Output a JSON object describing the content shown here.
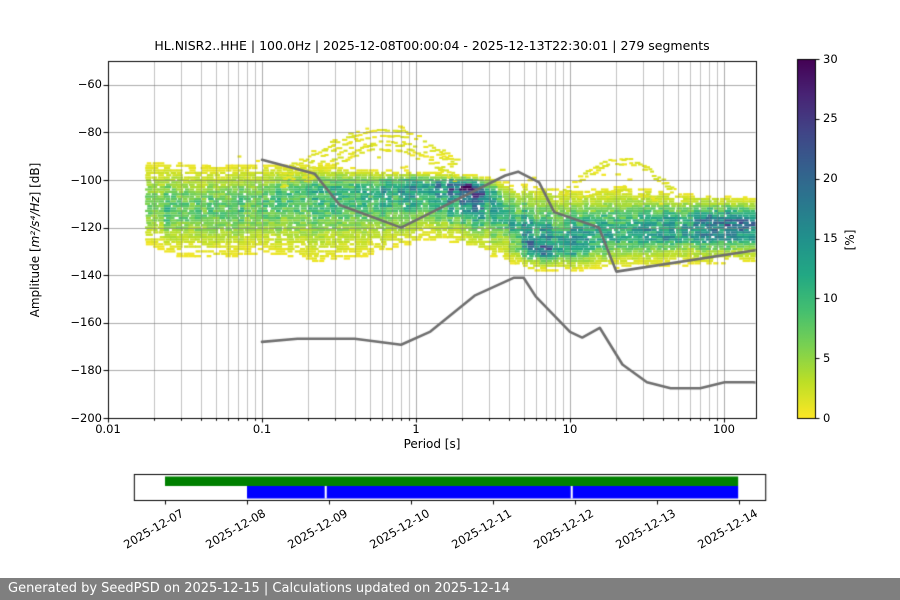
{
  "page": {
    "title": "HL.NISR2..HHE | 100.0Hz | 2025-12-08T00:00:04 - 2025-12-13T22:30:01 | 279 segments",
    "footer": "Generated by SeedPSD on 2025-12-15 | Calculations updated on 2025-12-14"
  },
  "chart_data": {
    "type": "heatmap",
    "title": "HL.NISR2..HHE | 100.0Hz | 2025-12-08T00:00:04 - 2025-12-13T22:30:01 | 279 segments",
    "xlabel": "Period [s]",
    "ylabel": {
      "prefix": "Amplitude [",
      "math": "m²/s⁴/Hz",
      "suffix": "] [dB]"
    },
    "xscale": "log",
    "xlim": [
      0.01,
      160
    ],
    "ylim": [
      -200,
      -50
    ],
    "grid": true,
    "x_major_ticks": [
      0.01,
      0.1,
      1,
      10,
      100
    ],
    "x_tick_labels": [
      "0.01",
      "0.1",
      "1",
      "10",
      "100"
    ],
    "y_major_ticks": [
      -60,
      -80,
      -100,
      -120,
      -140,
      -160,
      -180,
      -200
    ],
    "y_tick_labels": [
      "−60",
      "−80",
      "−100",
      "−120",
      "−140",
      "−160",
      "−180",
      "−200"
    ],
    "colorbar": {
      "label": "[%]",
      "min": 0,
      "max": 30,
      "ticks": [
        0,
        5,
        10,
        15,
        20,
        25,
        30
      ],
      "tick_labels": [
        "0",
        "5",
        "10",
        "15",
        "20",
        "25",
        "30"
      ],
      "colormap": "viridis_r",
      "viridis_stops": [
        [
          0.0,
          "#440154"
        ],
        [
          0.1,
          "#482475"
        ],
        [
          0.2,
          "#414487"
        ],
        [
          0.3,
          "#355f8d"
        ],
        [
          0.4,
          "#2a788e"
        ],
        [
          0.5,
          "#21918c"
        ],
        [
          0.6,
          "#22a884"
        ],
        [
          0.7,
          "#44bf70"
        ],
        [
          0.8,
          "#7ad151"
        ],
        [
          0.9,
          "#bddf26"
        ],
        [
          1.0,
          "#fde725"
        ]
      ]
    },
    "noise_models": {
      "color": "#6f6f6f",
      "nhnm": [
        [
          0.1,
          -91.5
        ],
        [
          0.22,
          -97.4
        ],
        [
          0.32,
          -110.5
        ],
        [
          0.8,
          -120.0
        ],
        [
          3.8,
          -98.1
        ],
        [
          4.6,
          -96.5
        ],
        [
          6.3,
          -101.0
        ],
        [
          7.9,
          -113.5
        ],
        [
          15.4,
          -120.0
        ],
        [
          20.0,
          -138.5
        ],
        [
          160.0,
          -129.5
        ]
      ],
      "nlnm": [
        [
          0.1,
          -168.0
        ],
        [
          0.17,
          -166.7
        ],
        [
          0.4,
          -166.7
        ],
        [
          0.8,
          -169.2
        ],
        [
          1.24,
          -163.7
        ],
        [
          2.4,
          -148.6
        ],
        [
          4.3,
          -141.1
        ],
        [
          5.0,
          -141.1
        ],
        [
          6.0,
          -149.0
        ],
        [
          10.0,
          -163.8
        ],
        [
          12.0,
          -166.2
        ],
        [
          15.6,
          -162.1
        ],
        [
          21.9,
          -177.5
        ],
        [
          31.6,
          -185.0
        ],
        [
          45.0,
          -187.5
        ],
        [
          70.0,
          -187.5
        ],
        [
          101.0,
          -185.0
        ],
        [
          154.0,
          -185.0
        ],
        [
          160.0,
          -185.1
        ]
      ]
    },
    "psd_distribution": {
      "units": "probability percent per 1 dB bin",
      "bands": [
        {
          "period": 0.017,
          "center_db": -111.0,
          "top_db": -93.0,
          "bottom_db": -127,
          "peak_percent": 8
        },
        {
          "period": 0.028,
          "center_db": -112.0,
          "top_db": -94.0,
          "bottom_db": -131,
          "peak_percent": 8
        },
        {
          "period": 0.05,
          "center_db": -112.0,
          "top_db": -95.0,
          "bottom_db": -132,
          "peak_percent": 8
        },
        {
          "period": 0.1,
          "center_db": -109.0,
          "top_db": -94.0,
          "bottom_db": -130,
          "peak_percent": 8.5
        },
        {
          "period": 0.2,
          "center_db": -106.0,
          "top_db": -94.0,
          "bottom_db": -133,
          "peak_percent": 9
        },
        {
          "period": 0.4,
          "center_db": -104.0,
          "top_db": -96.0,
          "bottom_db": -131,
          "peak_percent": 10
        },
        {
          "period": 0.7,
          "center_db": -103.0,
          "top_db": -97.0,
          "bottom_db": -127,
          "peak_percent": 11
        },
        {
          "period": 1.0,
          "center_db": -102.0,
          "top_db": -97.0,
          "bottom_db": -124,
          "peak_percent": 13
        },
        {
          "period": 1.5,
          "center_db": -102.5,
          "top_db": -98.0,
          "bottom_db": -124,
          "peak_percent": 16
        },
        {
          "period": 2.1,
          "center_db": -103.5,
          "top_db": -99.0,
          "bottom_db": -126,
          "peak_percent": 18
        },
        {
          "period": 3.2,
          "center_db": -110.0,
          "top_db": -101.0,
          "bottom_db": -131,
          "peak_percent": 12
        },
        {
          "period": 4.2,
          "center_db": -119.0,
          "top_db": -103.0,
          "bottom_db": -134,
          "peak_percent": 12
        },
        {
          "period": 5.6,
          "center_db": -128.0,
          "top_db": -104.0,
          "bottom_db": -137,
          "peak_percent": 15
        },
        {
          "period": 10.0,
          "center_db": -127.0,
          "top_db": -106.0,
          "bottom_db": -137,
          "peak_percent": 13
        },
        {
          "period": 14.0,
          "center_db": -124.5,
          "top_db": -105.0,
          "bottom_db": -136,
          "peak_percent": 12
        },
        {
          "period": 20.0,
          "center_db": -122.0,
          "top_db": -104.0,
          "bottom_db": -136,
          "peak_percent": 11
        },
        {
          "period": 40.0,
          "center_db": -119.5,
          "top_db": -106.0,
          "bottom_db": -135,
          "peak_percent": 12
        },
        {
          "period": 79.0,
          "center_db": -118.0,
          "top_db": -108.0,
          "bottom_db": -134,
          "peak_percent": 14
        },
        {
          "period": 160.0,
          "center_db": -117.5,
          "top_db": -109.0,
          "bottom_db": -133,
          "peak_percent": 15
        }
      ],
      "hotspots": [
        {
          "period": 2.1,
          "db": -102.5,
          "percent": 6,
          "sigma_log_period": 0.1,
          "sigma_db": 2.0
        },
        {
          "period": 5.8,
          "db": -129.5,
          "percent": 5,
          "sigma_log_period": 0.1,
          "sigma_db": 2.2
        },
        {
          "period": 112.0,
          "db": -117.5,
          "percent": 5,
          "sigma_log_period": 0.18,
          "sigma_db": 2.0
        }
      ],
      "secondary_ridge": {
        "period_range": [
          18,
          160
        ],
        "db": -124.5,
        "percent": 4,
        "sigma_db": 1.6
      },
      "event_arcs": [
        {
          "name": "short-period-event-arc-upper",
          "points": [
            [
              0.13,
              -98
            ],
            [
              0.2,
              -90
            ],
            [
              0.35,
              -82
            ],
            [
              0.55,
              -78.8
            ],
            [
              0.8,
              -79.2
            ],
            [
              1.0,
              -81.5
            ],
            [
              1.4,
              -88
            ],
            [
              2.0,
              -96
            ]
          ]
        },
        {
          "name": "short-period-event-arc-lower",
          "points": [
            [
              0.18,
              -99
            ],
            [
              0.3,
              -90.5
            ],
            [
              0.5,
              -85
            ],
            [
              0.8,
              -85.5
            ],
            [
              1.2,
              -91
            ],
            [
              1.8,
              -99
            ]
          ]
        },
        {
          "name": "long-period-event-loop-upper",
          "points": [
            [
              9,
              -104
            ],
            [
              12,
              -97
            ],
            [
              17,
              -91.5
            ],
            [
              24,
              -91
            ],
            [
              32,
              -95
            ],
            [
              45,
              -103
            ],
            [
              55,
              -108
            ]
          ]
        },
        {
          "name": "long-period-event-loop-lower",
          "points": [
            [
              11,
              -107.5
            ],
            [
              16,
              -104.5
            ],
            [
              22,
              -104
            ],
            [
              30,
              -106.5
            ],
            [
              40,
              -110
            ]
          ]
        }
      ],
      "scatter_zones": [
        {
          "period_range": [
            0.02,
            0.1
          ],
          "db_range": [
            -95,
            -88
          ],
          "prob": 0.18
        },
        {
          "period_range": [
            0.28,
            1.6
          ],
          "db_range": [
            -97,
            -82
          ],
          "prob": 0.5
        },
        {
          "period_range": [
            3.5,
            22.0
          ],
          "db_range": [
            -108,
            -95
          ],
          "prob": 0.5
        },
        {
          "period_range": [
            22.0,
            150.0
          ],
          "db_range": [
            -108,
            -98
          ],
          "prob": 0.12
        }
      ]
    }
  },
  "timeline": {
    "axis_days": [
      -0.38,
      7.32
    ],
    "tick_dates": [
      "2025-12-07",
      "2025-12-08",
      "2025-12-09",
      "2025-12-10",
      "2025-12-11",
      "2025-12-12",
      "2025-12-13",
      "2025-12-14"
    ],
    "bars": [
      {
        "name": "data-availability",
        "color": "#008000",
        "start_day": 0.0,
        "end_day": 6.99,
        "gap_days": []
      },
      {
        "name": "psd-coverage",
        "color": "#0000ff",
        "start_day": 1.0,
        "end_day": 6.99,
        "gap_days": [
          1.96,
          4.96
        ]
      }
    ]
  }
}
